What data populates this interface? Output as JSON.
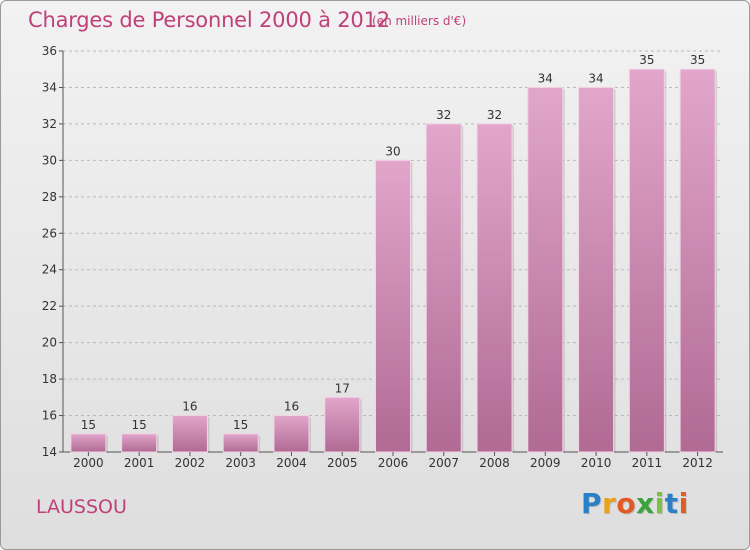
{
  "chart_data": {
    "type": "bar",
    "title": "Charges de Personnel 2000 à 2012",
    "subtitle": "(en milliers d'€)",
    "categories": [
      "2000",
      "2001",
      "2002",
      "2003",
      "2004",
      "2005",
      "2006",
      "2007",
      "2008",
      "2009",
      "2010",
      "2011",
      "2012"
    ],
    "values": [
      15,
      15,
      16,
      15,
      16,
      17,
      30,
      32,
      32,
      34,
      34,
      35,
      35
    ],
    "ylim": [
      14,
      36
    ],
    "yticks": [
      14,
      16,
      18,
      20,
      22,
      24,
      26,
      28,
      30,
      32,
      34,
      36
    ],
    "grid": true,
    "bar_color_top": "#e2a6cb",
    "bar_color_bottom": "#b06a93",
    "accent_color": "#c0407a"
  },
  "footer": {
    "commune": "LAUSSOU",
    "brand_letters": [
      "P",
      "r",
      "o",
      "x",
      "i",
      "t",
      "i"
    ],
    "brand_colors": [
      "#2a7fc7",
      "#e8a21b",
      "#e25a24",
      "#3aa33a",
      "#7cc142",
      "#2a7fc7",
      "#e25a24"
    ]
  }
}
